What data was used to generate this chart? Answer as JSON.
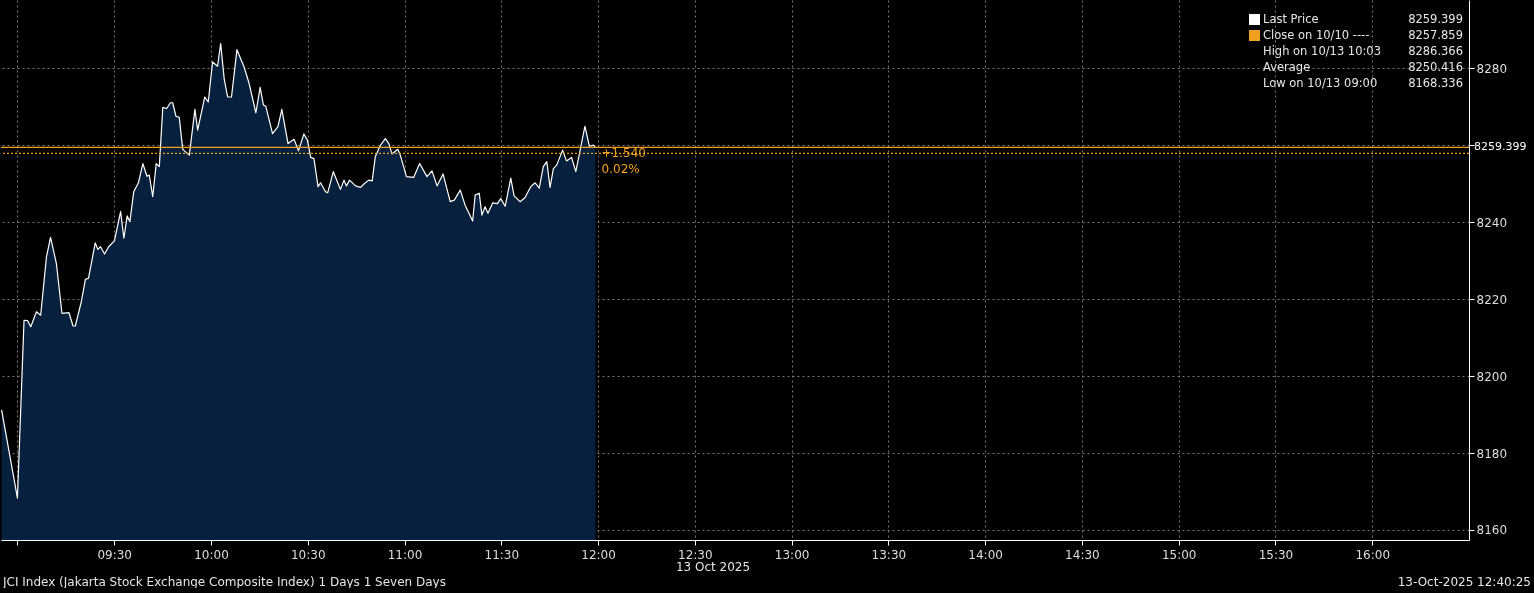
{
  "chart_data": {
    "type": "area",
    "x": [
      8.918,
      9.0,
      9.034,
      9.052,
      9.069,
      9.098,
      9.12,
      9.15,
      9.171,
      9.201,
      9.23,
      9.266,
      9.287,
      9.299,
      9.33,
      9.351,
      9.367,
      9.402,
      9.416,
      9.429,
      9.45,
      9.471,
      9.501,
      9.533,
      9.55,
      9.567,
      9.581,
      9.601,
      9.625,
      9.648,
      9.669,
      9.681,
      9.699,
      9.717,
      9.733,
      9.751,
      9.771,
      9.79,
      9.802,
      9.819,
      9.836,
      9.854,
      9.888,
      9.917,
      9.931,
      9.968,
      9.986,
      10.008,
      10.034,
      10.05,
      10.068,
      10.086,
      10.106,
      10.134,
      10.171,
      10.197,
      10.232,
      10.254,
      10.271,
      10.283,
      10.318,
      10.346,
      10.366,
      10.398,
      10.429,
      10.452,
      10.48,
      10.498,
      10.515,
      10.532,
      10.553,
      10.566,
      10.592,
      10.603,
      10.632,
      10.669,
      10.687,
      10.7,
      10.716,
      10.747,
      10.773,
      10.79,
      10.815,
      10.833,
      10.849,
      10.876,
      10.901,
      10.919,
      10.935,
      10.965,
      10.978,
      11.01,
      11.047,
      11.078,
      11.116,
      11.142,
      11.168,
      11.199,
      11.236,
      11.257,
      11.288,
      11.313,
      11.352,
      11.365,
      11.386,
      11.4,
      11.416,
      11.431,
      11.456,
      11.48,
      11.497,
      11.52,
      11.549,
      11.566,
      11.597,
      11.623,
      11.652,
      11.675,
      11.696,
      11.717,
      11.735,
      11.752,
      11.769,
      11.786,
      11.817,
      11.837,
      11.863,
      11.885,
      11.932,
      11.955,
      11.976,
      11.987
    ],
    "series": [
      {
        "name": "Last Price",
        "color": "#ffffff",
        "values": [
          8191.2,
          8168.3,
          8214.5,
          8214.4,
          8212.8,
          8216.7,
          8215.8,
          8231.0,
          8236.0,
          8229.3,
          8216.3,
          8216.5,
          8213.0,
          8213.0,
          8219.3,
          8225.1,
          8225.4,
          8234.6,
          8232.9,
          8233.6,
          8231.7,
          8233.6,
          8235.1,
          8242.7,
          8235.8,
          8241.6,
          8240.1,
          8247.9,
          8250.2,
          8255.2,
          8251.9,
          8252.2,
          8246.6,
          8255.2,
          8254.4,
          8269.8,
          8269.5,
          8271.0,
          8271.0,
          8267.5,
          8267.2,
          8258.9,
          8257.4,
          8269.3,
          8263.9,
          8272.5,
          8271.2,
          8281.6,
          8280.5,
          8286.4,
          8277.3,
          8272.5,
          8272.5,
          8284.8,
          8280.3,
          8276.0,
          8268.4,
          8275.0,
          8270.4,
          8270.1,
          8263.0,
          8264.8,
          8269.3,
          8260.4,
          8261.5,
          8258.5,
          8262.9,
          8261.3,
          8256.8,
          8256.5,
          8249.2,
          8250.2,
          8247.9,
          8247.6,
          8253.1,
          8248.5,
          8250.9,
          8249.4,
          8250.9,
          8249.4,
          8249.0,
          8249.9,
          8250.9,
          8250.7,
          8257.0,
          8260.0,
          8261.7,
          8260.4,
          8257.7,
          8258.9,
          8257.4,
          8251.8,
          8251.6,
          8255.2,
          8251.8,
          8253.3,
          8249.4,
          8252.5,
          8245.3,
          8245.7,
          8248.3,
          8244.4,
          8240.3,
          8247.0,
          8247.5,
          8241.8,
          8244.0,
          8242.3,
          8245.0,
          8244.8,
          8246.1,
          8244.1,
          8251.4,
          8246.8,
          8245.3,
          8246.4,
          8249.2,
          8250.2,
          8248.8,
          8254.4,
          8255.7,
          8249.0,
          8253.9,
          8254.8,
          8258.7,
          8255.9,
          8256.8,
          8253.1,
          8264.9,
          8259.7,
          8260.0,
          8259.4
        ]
      }
    ],
    "xlim": [
      8.915,
      16.5
    ],
    "xticks": [
      {
        "value": 9,
        "label": null
      },
      {
        "value": 9.5,
        "label": "09:30"
      },
      {
        "value": 10,
        "label": "10:00"
      },
      {
        "value": 10.5,
        "label": "10:30"
      },
      {
        "value": 11,
        "label": "11:00"
      },
      {
        "value": 11.5,
        "label": "11:30"
      },
      {
        "value": 12,
        "label": "12:00"
      },
      {
        "value": 12.5,
        "label": "12:30"
      },
      {
        "value": 13,
        "label": "13:00"
      },
      {
        "value": 13.5,
        "label": "13:30"
      },
      {
        "value": 14,
        "label": "14:00"
      },
      {
        "value": 14.5,
        "label": "14:30"
      },
      {
        "value": 15,
        "label": "15:00"
      },
      {
        "value": 15.5,
        "label": "15:30"
      },
      {
        "value": 16,
        "label": "16:00"
      }
    ],
    "ylim": [
      8157.4,
      8297.7
    ],
    "yticks": [
      8160,
      8180,
      8200,
      8220,
      8240,
      {
        "value": 8260,
        "label": null
      },
      8280
    ],
    "grid": true,
    "legend": "top right",
    "ref_lines": [
      {
        "axis": "y",
        "value": 8257.859,
        "label": "Close on 10/10 ----",
        "color": "#f0a020",
        "line_style": "dotted"
      },
      {
        "axis": "y",
        "value": 8259.399,
        "label": "8259.399",
        "color": "#f0a020",
        "line_style": "solid"
      }
    ],
    "annotations": [
      "8259.399",
      "8257.859",
      "High on 10/13 10:03",
      "8286.366",
      "Average",
      "8250.416",
      "Low on 10/13 09:00",
      "8168.336",
      {
        "text": "+1.540",
        "x": 11.987,
        "y": 8259.4
      },
      {
        "text": "0.02%",
        "x": 11.987,
        "y": 8259.4
      },
      "13 Oct 2025",
      "JCI Index (Jakarta Stock Exchange Composite Index) 1 Days 1 Seven Days",
      "13-Oct-2025 12:40:25"
    ]
  }
}
